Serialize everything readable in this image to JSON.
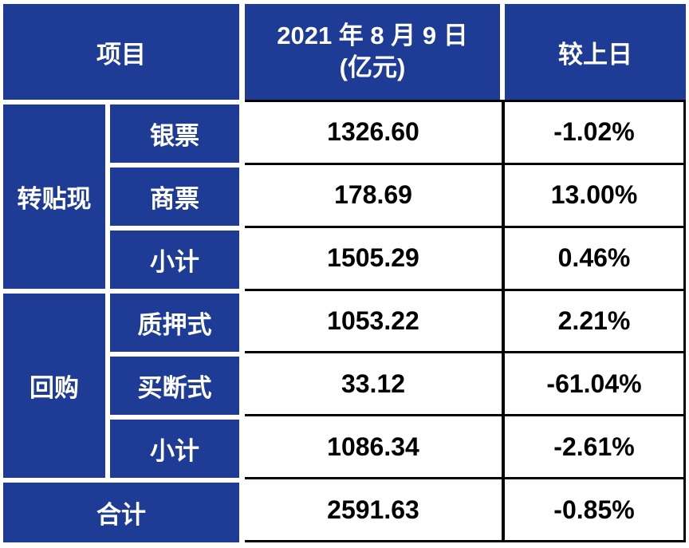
{
  "table": {
    "header": {
      "project_label": "项目",
      "date_line1": "2021 年 8 月 9 日",
      "date_line2": "(亿元)",
      "change_label": "较上日"
    },
    "groups": [
      {
        "name": "转贴现",
        "rows": [
          {
            "label": "银票",
            "value": "1326.60",
            "change": "-1.02%"
          },
          {
            "label": "商票",
            "value": "178.69",
            "change": "13.00%"
          },
          {
            "label": "小计",
            "value": "1505.29",
            "change": "0.46%"
          }
        ]
      },
      {
        "name": "回购",
        "rows": [
          {
            "label": "质押式",
            "value": "1053.22",
            "change": "2.21%"
          },
          {
            "label": "买断式",
            "value": "33.12",
            "change": "-61.04%"
          },
          {
            "label": "小计",
            "value": "1086.34",
            "change": "-2.61%"
          }
        ]
      }
    ],
    "total": {
      "label": "合计",
      "value": "2591.63",
      "change": "-0.85%"
    }
  },
  "colors": {
    "header_blue": "#1e3c96",
    "border_black": "#000000",
    "text_white": "#ffffff",
    "text_black": "#000000"
  },
  "chart_data": {
    "type": "table",
    "columns": [
      "项目",
      "2021年8月9日(亿元)",
      "较上日"
    ],
    "rows": [
      {
        "group": "转贴现",
        "item": "银票",
        "value": 1326.6,
        "change_pct": -1.02
      },
      {
        "group": "转贴现",
        "item": "商票",
        "value": 178.69,
        "change_pct": 13.0
      },
      {
        "group": "转贴现",
        "item": "小计",
        "value": 1505.29,
        "change_pct": 0.46
      },
      {
        "group": "回购",
        "item": "质押式",
        "value": 1053.22,
        "change_pct": 2.21
      },
      {
        "group": "回购",
        "item": "买断式",
        "value": 33.12,
        "change_pct": -61.04
      },
      {
        "group": "回购",
        "item": "小计",
        "value": 1086.34,
        "change_pct": -2.61
      },
      {
        "group": "合计",
        "item": "合计",
        "value": 2591.63,
        "change_pct": -0.85
      }
    ]
  }
}
